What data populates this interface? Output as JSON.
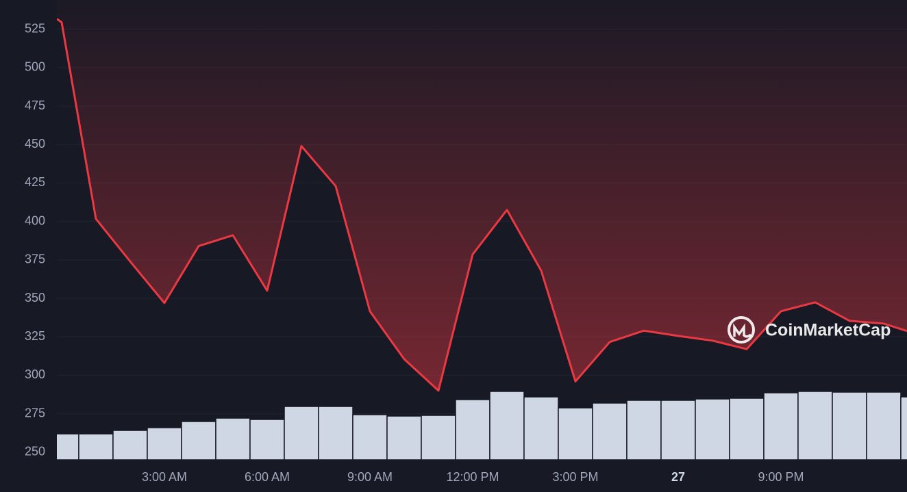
{
  "chart_data": {
    "type": "line",
    "watermark": "CoinMarketCap",
    "x": [
      -0.14,
      0,
      1,
      2,
      3,
      4,
      5,
      6,
      7,
      8,
      9,
      10,
      11,
      12,
      13,
      14,
      15,
      16,
      17,
      18,
      19,
      20,
      21,
      22,
      23,
      24,
      24.68
    ],
    "xlim": [
      -0.14,
      24.68
    ],
    "xticks": [
      {
        "value": 3,
        "label": "3:00 AM"
      },
      {
        "value": 6,
        "label": "6:00 AM"
      },
      {
        "value": 9,
        "label": "9:00 AM"
      },
      {
        "value": 12,
        "label": "12:00 PM"
      },
      {
        "value": 15,
        "label": "3:00 PM"
      },
      {
        "value": 18,
        "label": "27"
      },
      {
        "value": 21,
        "label": "9:00 PM"
      }
    ],
    "ylim": [
      245,
      544
    ],
    "yticks": [
      250,
      275,
      300,
      325,
      350,
      375,
      400,
      425,
      450,
      475,
      500,
      525
    ],
    "grid": true,
    "series": [
      {
        "color": "#ea3943",
        "values": [
          531.7,
          529.5,
          401.7,
          374,
          347,
          384,
          391,
          355,
          449,
          423,
          341.6,
          310.5,
          290,
          378.6,
          407.5,
          368,
          296,
          321.6,
          329,
          325.6,
          322.5,
          317,
          341.6,
          347.4,
          335.4,
          333.6,
          328.7
        ]
      }
    ],
    "volume": {
      "type": "bar",
      "color": "#cfd6e4",
      "x": [
        0,
        1,
        2,
        3,
        4,
        5,
        6,
        7,
        8,
        9,
        10,
        11,
        12,
        13,
        14,
        15,
        16,
        17,
        18,
        19,
        20,
        21,
        22,
        23,
        24,
        25
      ],
      "values": [
        38,
        38,
        43,
        47,
        56,
        61,
        59,
        78,
        78,
        66,
        64,
        65,
        88,
        100,
        92,
        76,
        83,
        87,
        87,
        89,
        90,
        98,
        100,
        99,
        99,
        92
      ]
    }
  }
}
